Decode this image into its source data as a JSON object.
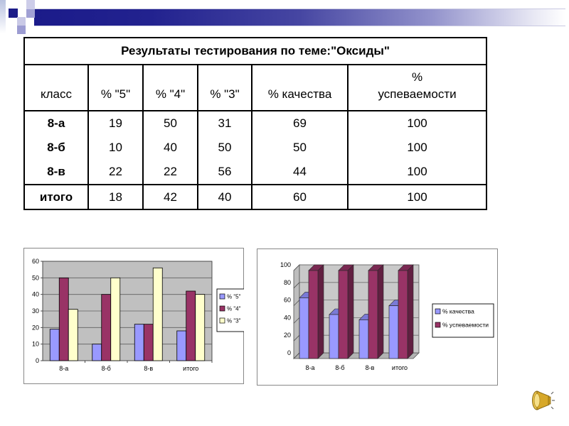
{
  "slide": {
    "background": "#ffffff",
    "header_accent": "#1b1b8a",
    "header_accent_light": "#9c9cd2"
  },
  "table": {
    "title": "Результаты тестирования по теме:\"Оксиды\"",
    "columns": [
      "класс",
      "% \"5\"",
      "% \"4\"",
      "% \"3\"",
      "% качества",
      "%\nуспеваемости"
    ],
    "rows": [
      {
        "label": "8-а",
        "values": [
          "19",
          "50",
          "31",
          "69",
          "100"
        ]
      },
      {
        "label": "8-б",
        "values": [
          "10",
          "40",
          "50",
          "50",
          "100"
        ]
      },
      {
        "label": "8-в",
        "values": [
          "22",
          "22",
          "56",
          "44",
          "100"
        ]
      }
    ],
    "total_row": {
      "label": "итого",
      "values": [
        "18",
        "42",
        "40",
        "60",
        "100"
      ]
    }
  },
  "chart_data": [
    {
      "type": "bar",
      "style": "2d",
      "title": "",
      "categories": [
        "8-а",
        "8-б",
        "8-в",
        "итого"
      ],
      "series": [
        {
          "name": "% \"5\"",
          "color": "#9999ff",
          "shade": "#6e6ecc",
          "dark": "#5a5ab8",
          "values": [
            19,
            10,
            22,
            18
          ]
        },
        {
          "name": "% \"4\"",
          "color": "#993366",
          "shade": "#6e2449",
          "dark": "#5c1e3c",
          "values": [
            50,
            40,
            22,
            42
          ]
        },
        {
          "name": "% \"3\"",
          "color": "#ffffcc",
          "shade": "#cccc99",
          "dark": "#b8b885",
          "values": [
            31,
            50,
            56,
            40
          ]
        }
      ],
      "ylim": [
        0,
        60
      ],
      "ytick_step": 10,
      "plot_bg": "#c0c0c0",
      "grid": true,
      "legend_position": "right"
    },
    {
      "type": "bar",
      "style": "3d",
      "title": "",
      "categories": [
        "8-а",
        "8-б",
        "8-в",
        "итого"
      ],
      "series": [
        {
          "name": "% качества",
          "color": "#9999ff",
          "shade": "#7a7ad6",
          "dark": "#5f5fb8",
          "values": [
            69,
            50,
            44,
            60
          ]
        },
        {
          "name": "% успеваемости",
          "color": "#993366",
          "shade": "#7a2852",
          "dark": "#611f41",
          "values": [
            100,
            100,
            100,
            100
          ]
        }
      ],
      "ylim": [
        0,
        100
      ],
      "ytick_step": 20,
      "plot_bg": "#c9c9c9",
      "grid": true,
      "legend_position": "right"
    }
  ],
  "audio": {
    "icon": "speaker-icon",
    "color": "#d7a829"
  }
}
